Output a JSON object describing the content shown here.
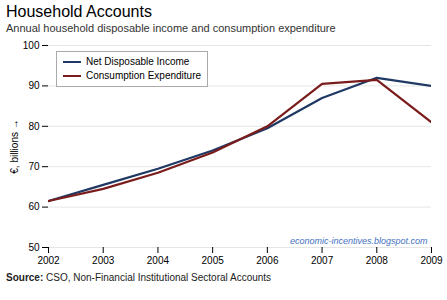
{
  "chart_data": {
    "type": "line",
    "title": "Household Accounts",
    "subtitle": "Annual household disposable income and consumption expenditure",
    "watermark": "economic-incentives.blogspot.com",
    "source_label": "Source:",
    "source": "CSO, Non-Financial Institutional Sectoral Accounts",
    "y_label": "€, billions",
    "x": [
      2002,
      2003,
      2004,
      2005,
      2006,
      2007,
      2008,
      2009
    ],
    "series": [
      {
        "name": "Net Disposable Income",
        "color": "#1f3864",
        "values": [
          61.5,
          65.5,
          69.5,
          74.0,
          79.5,
          87.0,
          92.0,
          90.0
        ]
      },
      {
        "name": "Consumption Expenditure",
        "color": "#7b1c1c",
        "values": [
          61.5,
          64.5,
          68.5,
          73.5,
          80.0,
          90.5,
          91.5,
          81.0
        ]
      }
    ],
    "xlim": [
      2002,
      2009
    ],
    "xticks": [
      2002,
      2003,
      2004,
      2005,
      2006,
      2007,
      2008,
      2009
    ],
    "ylim": [
      50,
      100
    ],
    "yticks": [
      50,
      60,
      70,
      80,
      90,
      100
    ],
    "grid": true,
    "legend": "upper left"
  }
}
